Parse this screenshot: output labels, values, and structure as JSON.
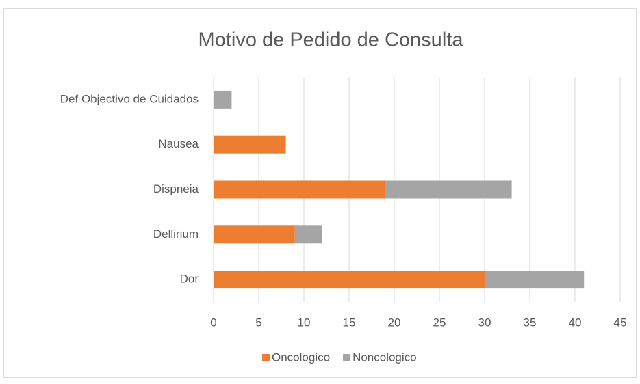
{
  "chart_data": {
    "type": "bar",
    "orientation": "horizontal",
    "stacked": true,
    "title": "Motivo de Pedido de Consulta",
    "categories": [
      "Dor",
      "Dellirium",
      "Dispneia",
      "Nausea",
      "Def Objectivo de Cuidados"
    ],
    "series": [
      {
        "name": "Oncologico",
        "color": "#ed7d31",
        "values": [
          30,
          9,
          19,
          8,
          0
        ]
      },
      {
        "name": "Noncologico",
        "color": "#a5a5a5",
        "values": [
          11,
          3,
          14,
          0,
          2
        ]
      }
    ],
    "xlim": [
      0,
      45
    ],
    "xticks": [
      0,
      5,
      10,
      15,
      20,
      25,
      30,
      35,
      40,
      45
    ],
    "grid": true,
    "legend": "bottom"
  }
}
